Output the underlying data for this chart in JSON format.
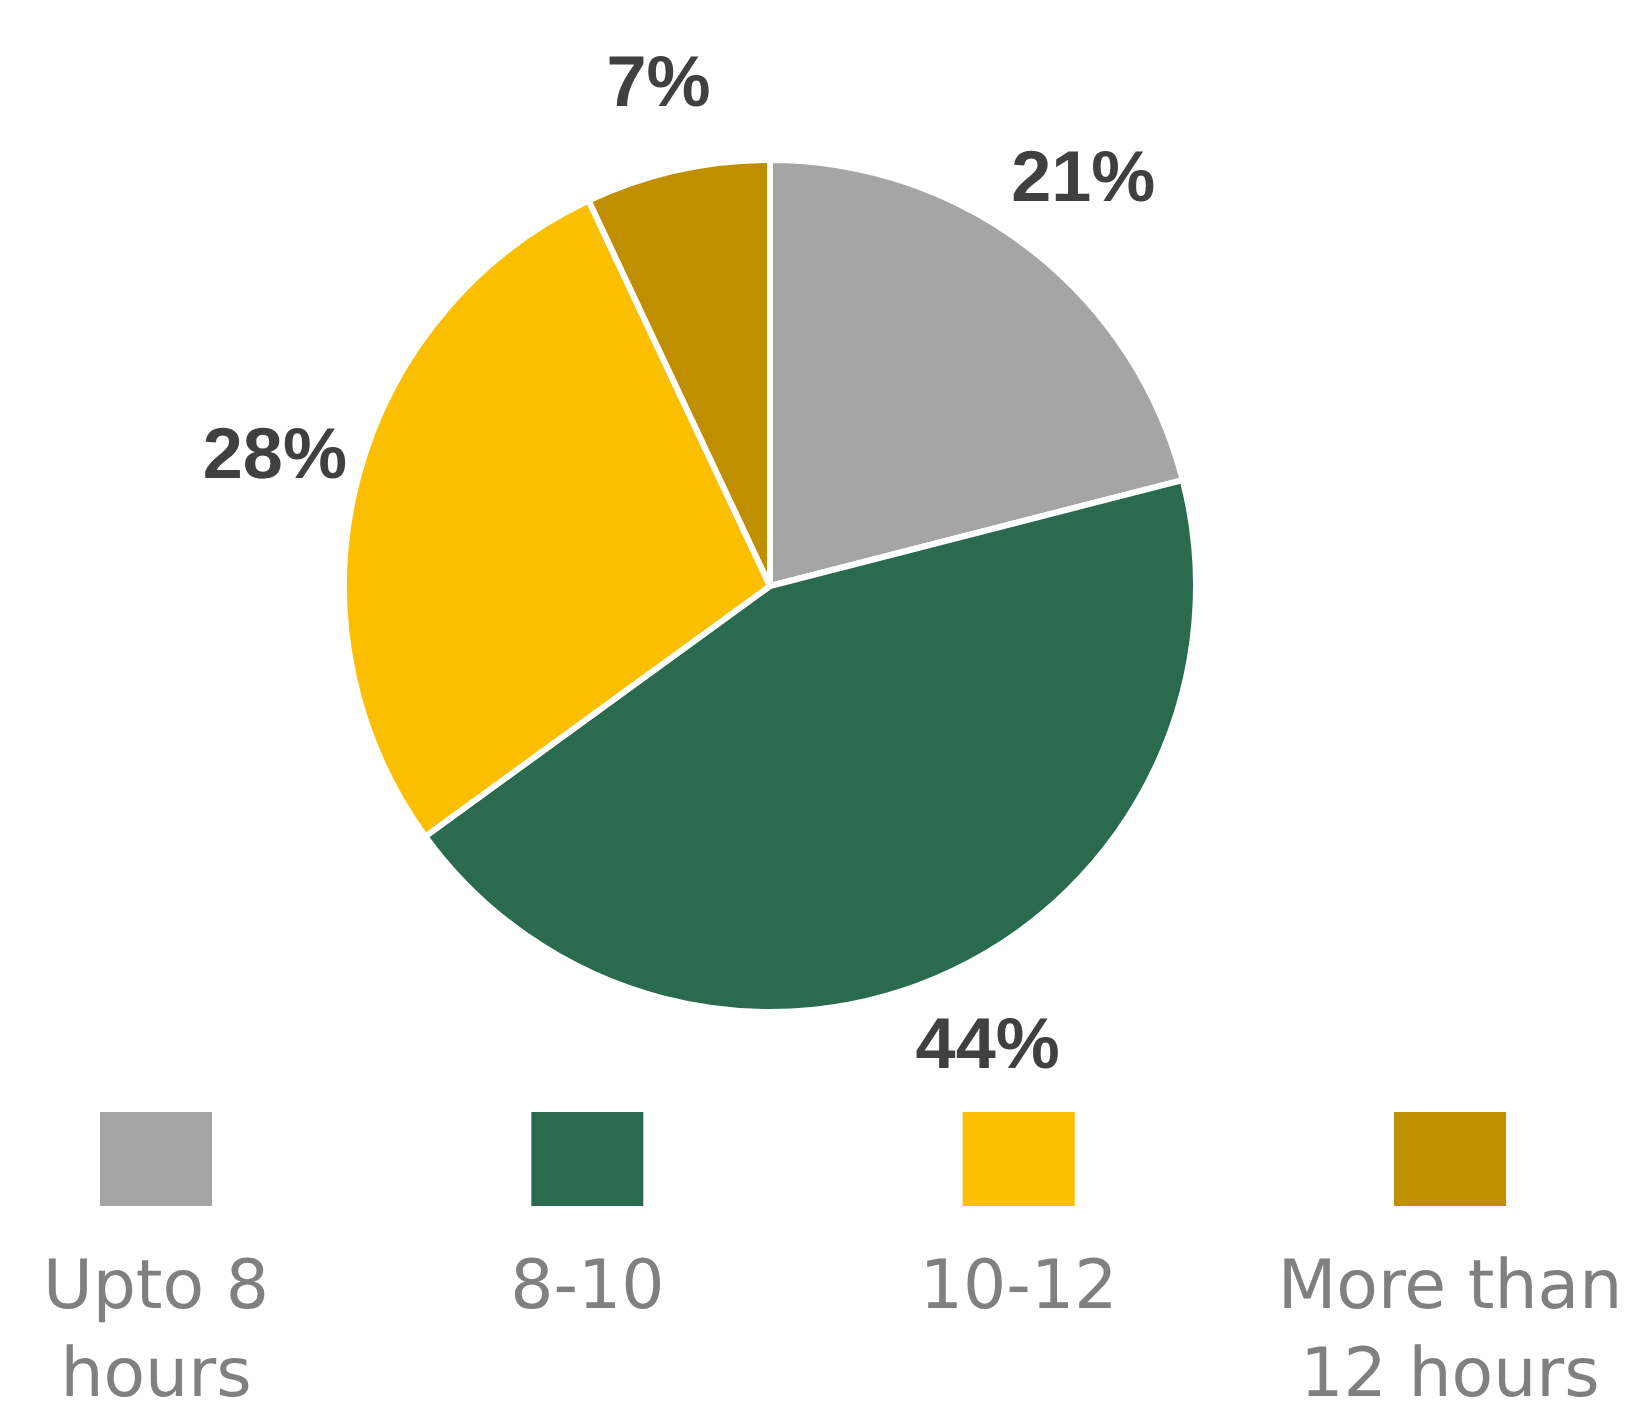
{
  "chart_data": {
    "type": "pie",
    "categories": [
      "Upto 8 hours",
      "8-10",
      "10-12",
      "More than 12 hours"
    ],
    "values": [
      21,
      44,
      28,
      7
    ],
    "colors": [
      "#a5a5a5",
      "#2a6b50",
      "#fbbf00",
      "#bf8f00"
    ],
    "value_labels": [
      "21%",
      "44%",
      "28%",
      "7%"
    ],
    "legend": "bottom"
  }
}
